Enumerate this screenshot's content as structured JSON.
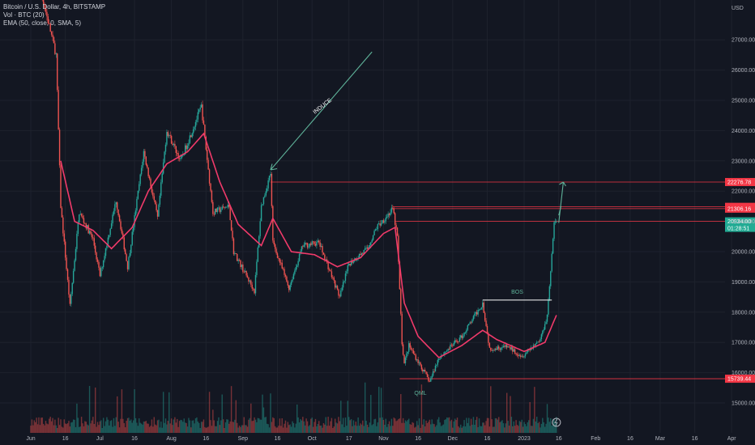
{
  "legend": {
    "line1": "Bitcoin / U.S. Dollar, 4h, BITSTAMP",
    "line2": "Vol · BTC (20)",
    "line3": "EMA (50, close, 0, SMA, 5)"
  },
  "colors": {
    "background": "#131722",
    "bull": "#26a69a",
    "bear": "#ef5350",
    "ema": "#f03a6a",
    "hline": "#f23645",
    "annotation": "#5fb39a",
    "bos_line": "#ffffff"
  },
  "chart_data": {
    "type": "candlestick",
    "y_unit_label": "USD",
    "ylim": [
      14500,
      27600
    ],
    "y_ticks": [
      15000,
      16000,
      17000,
      18000,
      19000,
      20000,
      21000,
      22000,
      23000,
      24000,
      25000,
      26000,
      27000
    ],
    "y_tick_labels": [
      "15000.00",
      "16000.00",
      "17000.00",
      "18000.00",
      "19000.00",
      "20000.00",
      "21000.00",
      "22000.00",
      "23000.00",
      "24000.00",
      "25000.00",
      "26000.00",
      "27000.00"
    ],
    "x_tick_labels": [
      "Jun",
      "16",
      "Jul",
      "16",
      "Aug",
      "16",
      "Sep",
      "16",
      "Oct",
      "17",
      "Nov",
      "16",
      "Dec",
      "16",
      "2023",
      "16",
      "Feb",
      "16",
      "Mar",
      "16",
      "Apr"
    ],
    "x_tick_dates": [
      "2022-06-01",
      "2022-06-16",
      "2022-07-01",
      "2022-07-16",
      "2022-08-01",
      "2022-08-16",
      "2022-09-01",
      "2022-09-16",
      "2022-10-01",
      "2022-10-17",
      "2022-11-01",
      "2022-11-16",
      "2022-12-01",
      "2022-12-16",
      "2023-01-01",
      "2023-01-16",
      "2023-02-01",
      "2023-02-16",
      "2023-03-01",
      "2023-03-16",
      "2023-04-01"
    ],
    "price_keypoints": [
      {
        "date": "2022-06-01",
        "price": 30000
      },
      {
        "date": "2022-06-12",
        "price": 26500
      },
      {
        "date": "2022-06-14",
        "price": 21500
      },
      {
        "date": "2022-06-18",
        "price": 18200
      },
      {
        "date": "2022-06-22",
        "price": 21300
      },
      {
        "date": "2022-06-28",
        "price": 20400
      },
      {
        "date": "2022-07-01",
        "price": 19200
      },
      {
        "date": "2022-07-08",
        "price": 21700
      },
      {
        "date": "2022-07-13",
        "price": 19500
      },
      {
        "date": "2022-07-20",
        "price": 23300
      },
      {
        "date": "2022-07-26",
        "price": 21100
      },
      {
        "date": "2022-07-30",
        "price": 24000
      },
      {
        "date": "2022-08-05",
        "price": 23000
      },
      {
        "date": "2022-08-14",
        "price": 24800
      },
      {
        "date": "2022-08-19",
        "price": 21300
      },
      {
        "date": "2022-08-26",
        "price": 21500
      },
      {
        "date": "2022-08-28",
        "price": 20000
      },
      {
        "date": "2022-09-06",
        "price": 18700
      },
      {
        "date": "2022-09-09",
        "price": 21500
      },
      {
        "date": "2022-09-13",
        "price": 22600
      },
      {
        "date": "2022-09-14",
        "price": 20300
      },
      {
        "date": "2022-09-21",
        "price": 18800
      },
      {
        "date": "2022-09-27",
        "price": 20200
      },
      {
        "date": "2022-10-04",
        "price": 20300
      },
      {
        "date": "2022-10-13",
        "price": 18500
      },
      {
        "date": "2022-10-17",
        "price": 19600
      },
      {
        "date": "2022-10-25",
        "price": 20100
      },
      {
        "date": "2022-10-29",
        "price": 20800
      },
      {
        "date": "2022-11-05",
        "price": 21400
      },
      {
        "date": "2022-11-07",
        "price": 20500
      },
      {
        "date": "2022-11-09",
        "price": 17000
      },
      {
        "date": "2022-11-10",
        "price": 16300
      },
      {
        "date": "2022-11-12",
        "price": 16900
      },
      {
        "date": "2022-11-21",
        "price": 15700
      },
      {
        "date": "2022-11-25",
        "price": 16500
      },
      {
        "date": "2022-12-05",
        "price": 17200
      },
      {
        "date": "2022-12-14",
        "price": 18300
      },
      {
        "date": "2022-12-17",
        "price": 16800
      },
      {
        "date": "2022-12-25",
        "price": 16850
      },
      {
        "date": "2022-12-31",
        "price": 16550
      },
      {
        "date": "2023-01-08",
        "price": 17100
      },
      {
        "date": "2023-01-11",
        "price": 17900
      },
      {
        "date": "2023-01-14",
        "price": 20900
      },
      {
        "date": "2023-01-15",
        "price": 21000
      }
    ],
    "ema_keypoints": [
      {
        "date": "2022-06-14",
        "price": 23000
      },
      {
        "date": "2022-06-20",
        "price": 21000
      },
      {
        "date": "2022-06-28",
        "price": 20700
      },
      {
        "date": "2022-07-06",
        "price": 20100
      },
      {
        "date": "2022-07-15",
        "price": 20800
      },
      {
        "date": "2022-07-22",
        "price": 22000
      },
      {
        "date": "2022-07-30",
        "price": 22900
      },
      {
        "date": "2022-08-08",
        "price": 23300
      },
      {
        "date": "2022-08-15",
        "price": 23900
      },
      {
        "date": "2022-08-22",
        "price": 22300
      },
      {
        "date": "2022-08-30",
        "price": 20900
      },
      {
        "date": "2022-09-09",
        "price": 20200
      },
      {
        "date": "2022-09-14",
        "price": 21100
      },
      {
        "date": "2022-09-22",
        "price": 20000
      },
      {
        "date": "2022-10-02",
        "price": 19900
      },
      {
        "date": "2022-10-12",
        "price": 19500
      },
      {
        "date": "2022-10-22",
        "price": 19800
      },
      {
        "date": "2022-11-01",
        "price": 20600
      },
      {
        "date": "2022-11-06",
        "price": 20800
      },
      {
        "date": "2022-11-10",
        "price": 18300
      },
      {
        "date": "2022-11-16",
        "price": 17200
      },
      {
        "date": "2022-11-25",
        "price": 16500
      },
      {
        "date": "2022-12-05",
        "price": 16900
      },
      {
        "date": "2022-12-14",
        "price": 17400
      },
      {
        "date": "2022-12-20",
        "price": 17100
      },
      {
        "date": "2023-01-01",
        "price": 16700
      },
      {
        "date": "2023-01-10",
        "price": 17000
      },
      {
        "date": "2023-01-15",
        "price": 17900
      }
    ],
    "horizontal_levels": [
      {
        "price": 22300,
        "label": "22276.78",
        "extends_from": "2022-09-13"
      },
      {
        "price": 21480,
        "label": "21471.54",
        "extends_from": "2022-11-05"
      },
      {
        "price": 21420,
        "label": "21306.16",
        "extends_from": "2022-11-05"
      },
      {
        "price": 21000,
        "label": "20934.00",
        "extends_from": "2022-11-06",
        "secondary_label": "01:28:51"
      },
      {
        "price": 15800,
        "label": "15739.44",
        "extends_from": "2022-11-08"
      }
    ],
    "annotations": {
      "induce_label": "INDUCE",
      "bos_label": "BOS",
      "qml_label": "QML",
      "bos_line": {
        "from": "2022-12-14",
        "to": "2023-01-13",
        "price": 18400
      },
      "induce_arrow": {
        "from_date": "2022-10-27",
        "from_price": 26600,
        "to_date": "2022-09-13",
        "to_price": 22700
      },
      "projection_arrow": {
        "points": [
          {
            "date": "2023-01-16",
            "price": 20950
          },
          {
            "date": "2023-01-18",
            "price": 22300
          }
        ]
      },
      "projection_arrow_2": {
        "points": [
          {
            "date": "2023-01-17",
            "price": 21500
          },
          {
            "date": "2023-01-16",
            "price": 21200
          }
        ]
      }
    }
  }
}
